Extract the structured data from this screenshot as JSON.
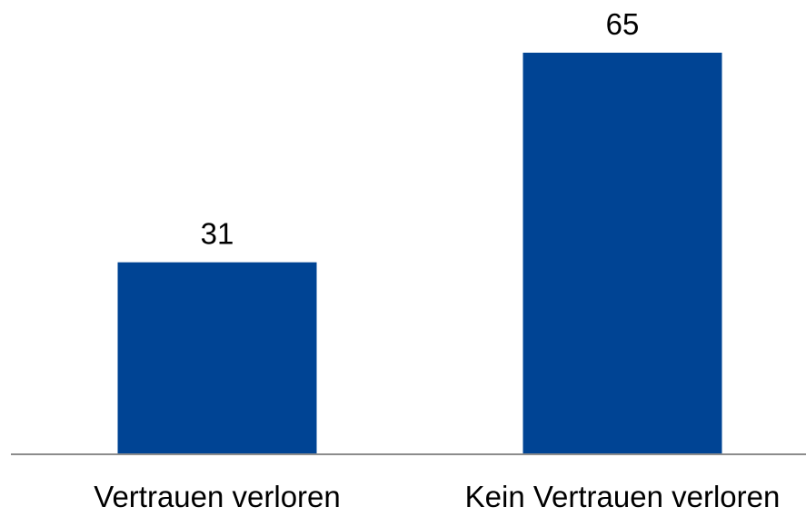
{
  "colors": {
    "bar": "#004494",
    "axis": "#8c8c8c",
    "text": "#000000",
    "background": "#ffffff"
  },
  "chart_data": {
    "type": "bar",
    "categories": [
      "Vertrauen verloren",
      "Kein Vertrauen verloren"
    ],
    "values": [
      31,
      65
    ],
    "data_labels": [
      "31",
      "65"
    ],
    "title": "",
    "xlabel": "",
    "ylabel": "",
    "ylim": [
      0,
      70
    ],
    "grid": false,
    "legend": "none",
    "y_axis_visible": false
  }
}
